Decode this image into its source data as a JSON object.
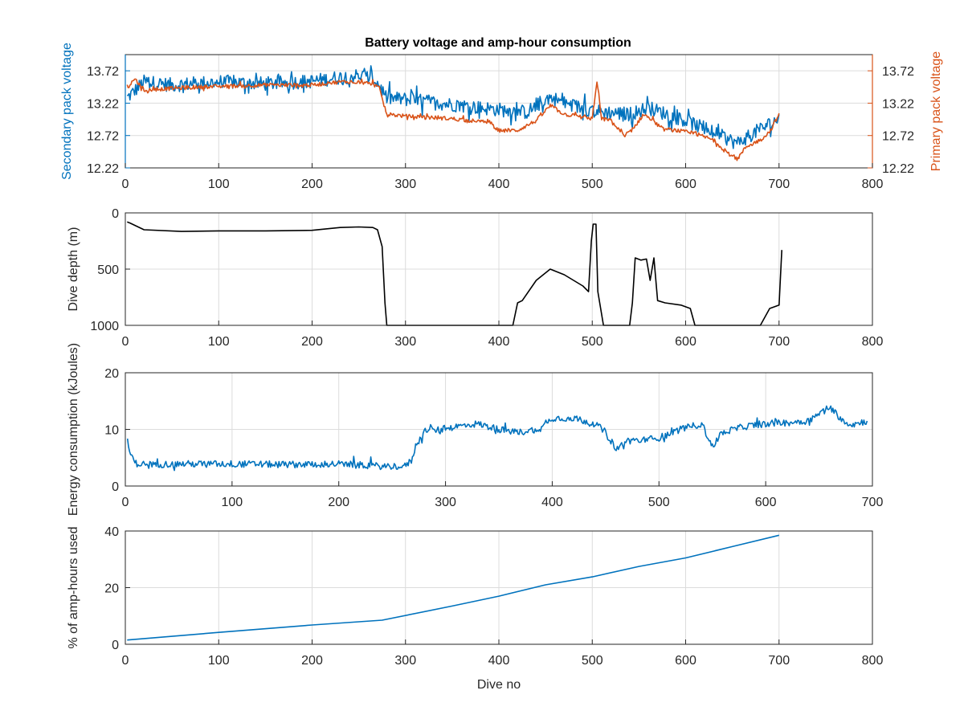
{
  "figure_title": "Battery voltage and amp-hour consumption",
  "chart_data": [
    {
      "type": "line",
      "title": "Battery voltage and amp-hour consumption",
      "xlabel": "",
      "ylabel": "Secondary pack voltage",
      "ylabel_right": "Primary pack voltage",
      "xlim": [
        0,
        800
      ],
      "ylim": [
        12.22,
        13.97
      ],
      "x_ticks": [
        "0",
        "100",
        "200",
        "300",
        "400",
        "500",
        "600",
        "700",
        "800"
      ],
      "y_ticks": [
        "12.22",
        "12.72",
        "13.22",
        "13.72"
      ],
      "y_ticks_right": [
        "12.22",
        "12.72",
        "13.22",
        "13.72"
      ],
      "grid": true,
      "colors": {
        "left_axis": "#0072BD",
        "right_axis": "#D95319"
      },
      "series": [
        {
          "name": "Secondary pack voltage",
          "color": "#0072BD",
          "axis": "left",
          "x": [
            2,
            20,
            50,
            100,
            150,
            200,
            230,
            250,
            265,
            272,
            280,
            300,
            350,
            380,
            400,
            430,
            455,
            470,
            500,
            540,
            560,
            600,
            640,
            655,
            680,
            700
          ],
          "y": [
            13.3,
            13.55,
            13.5,
            13.55,
            13.52,
            13.56,
            13.62,
            13.65,
            13.6,
            13.5,
            13.3,
            13.28,
            13.2,
            13.15,
            13.12,
            13.08,
            13.32,
            13.22,
            13.1,
            13.05,
            13.15,
            12.95,
            12.7,
            12.6,
            12.82,
            12.98
          ],
          "spread": 0.22
        },
        {
          "name": "Primary pack voltage",
          "color": "#D95319",
          "axis": "right",
          "x": [
            2,
            10,
            20,
            50,
            100,
            150,
            200,
            230,
            250,
            265,
            272,
            280,
            300,
            350,
            390,
            400,
            420,
            440,
            455,
            470,
            500,
            505,
            510,
            520,
            535,
            545,
            555,
            565,
            575,
            590,
            610,
            630,
            645,
            655,
            665,
            680,
            690,
            700
          ],
          "y": [
            13.45,
            13.6,
            13.42,
            13.45,
            13.48,
            13.5,
            13.5,
            13.55,
            13.55,
            13.52,
            13.45,
            13.05,
            13.02,
            12.98,
            12.92,
            12.8,
            12.8,
            12.95,
            13.18,
            13.05,
            12.98,
            13.55,
            12.98,
            12.95,
            12.7,
            12.85,
            13.05,
            12.95,
            12.82,
            12.8,
            12.75,
            12.65,
            12.45,
            12.35,
            12.55,
            12.65,
            12.78,
            13.05
          ],
          "spread": 0.06
        }
      ]
    },
    {
      "type": "line",
      "xlabel": "",
      "ylabel": "Dive depth (m)",
      "xlim": [
        0,
        800
      ],
      "ylim": [
        0,
        1000
      ],
      "y_reversed": true,
      "x_ticks": [
        "0",
        "100",
        "200",
        "300",
        "400",
        "500",
        "600",
        "700",
        "800"
      ],
      "y_ticks": [
        "0",
        "500",
        "1000"
      ],
      "grid": true,
      "series": [
        {
          "name": "",
          "color": "#000000",
          "x": [
            2,
            5,
            20,
            60,
            100,
            150,
            200,
            230,
            250,
            265,
            270,
            275,
            278,
            280,
            300,
            350,
            400,
            415,
            420,
            425,
            440,
            455,
            470,
            480,
            490,
            496,
            499,
            501,
            504,
            506,
            509,
            512,
            515,
            520,
            540,
            543,
            546,
            552,
            558,
            562,
            566,
            570,
            578,
            595,
            605,
            610,
            615,
            650,
            680,
            690,
            700,
            703
          ],
          "y": [
            80,
            90,
            150,
            165,
            160,
            160,
            155,
            130,
            125,
            130,
            150,
            300,
            800,
            1000,
            1000,
            1000,
            1000,
            1000,
            800,
            780,
            600,
            500,
            550,
            600,
            650,
            700,
            250,
            100,
            100,
            700,
            850,
            1000,
            1000,
            1000,
            1000,
            800,
            400,
            420,
            410,
            600,
            400,
            780,
            800,
            820,
            850,
            1000,
            1000,
            1000,
            1000,
            850,
            820,
            330
          ]
        }
      ]
    },
    {
      "type": "line",
      "xlabel": "",
      "ylabel": "Energy consumption (kJoules)",
      "xlim": [
        0,
        700
      ],
      "ylim": [
        0,
        20
      ],
      "x_ticks": [
        "0",
        "100",
        "200",
        "300",
        "400",
        "500",
        "600",
        "700"
      ],
      "y_ticks": [
        "0",
        "10",
        "20"
      ],
      "grid": true,
      "series": [
        {
          "name": "",
          "color": "#0072BD",
          "x": [
            2,
            5,
            10,
            20,
            50,
            100,
            150,
            200,
            240,
            262,
            268,
            272,
            278,
            282,
            290,
            310,
            330,
            350,
            370,
            390,
            400,
            420,
            440,
            450,
            460,
            470,
            480,
            500,
            520,
            540,
            550,
            560,
            580,
            600,
            620,
            640,
            660,
            670,
            680,
            695
          ],
          "y": [
            7.8,
            5.5,
            4.0,
            3.8,
            3.9,
            3.9,
            3.8,
            3.9,
            3.5,
            3.5,
            4.5,
            7.0,
            9.0,
            10.0,
            9.8,
            10.5,
            11.0,
            10.0,
            9.5,
            10.2,
            12.0,
            12.0,
            11.0,
            9.5,
            6.5,
            8.0,
            8.0,
            8.5,
            10.0,
            11.0,
            7.0,
            9.5,
            10.5,
            11.0,
            11.2,
            11.5,
            14.0,
            12.0,
            10.8,
            11.5
          ],
          "spread": 1.2
        }
      ]
    },
    {
      "type": "line",
      "xlabel": "Dive no",
      "ylabel": "% of amp-hours used",
      "xlim": [
        0,
        800
      ],
      "ylim": [
        0,
        40
      ],
      "x_ticks": [
        "0",
        "100",
        "200",
        "300",
        "400",
        "500",
        "600",
        "700",
        "800"
      ],
      "y_ticks": [
        "0",
        "20",
        "40"
      ],
      "grid": true,
      "series": [
        {
          "name": "",
          "color": "#0072BD",
          "x": [
            2,
            100,
            200,
            275,
            350,
            400,
            450,
            500,
            550,
            600,
            650,
            700
          ],
          "y": [
            1.5,
            4.2,
            6.8,
            8.5,
            13.5,
            17.0,
            21.0,
            23.8,
            27.5,
            30.5,
            34.5,
            38.5
          ]
        }
      ]
    }
  ]
}
